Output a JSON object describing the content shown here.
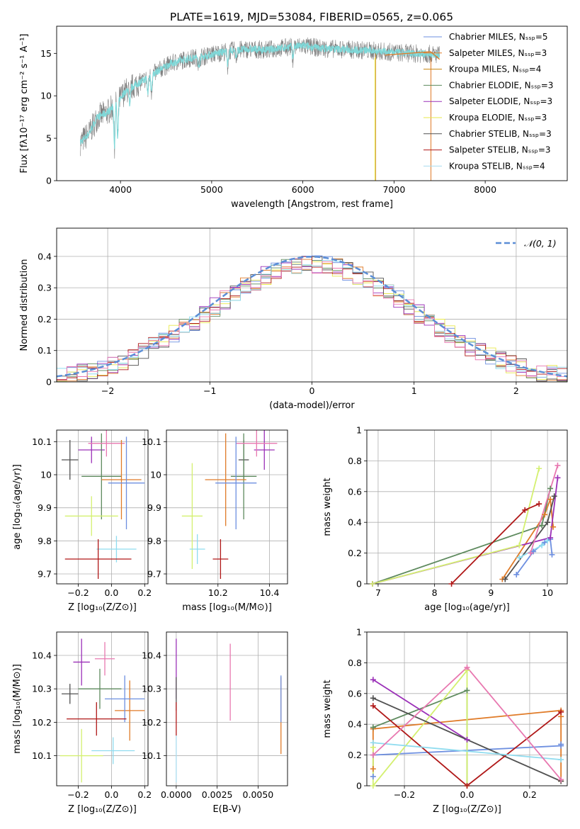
{
  "figure": {
    "title": "PLATE=1619, MJD=53084, FIBERID=0565, z=0.065"
  },
  "model_colors": [
    "#6d8fe0",
    "#e07b28",
    "#c8860e",
    "#5e8a5e",
    "#9b30b8",
    "#e8e84a",
    "#505050",
    "#b01818",
    "#a8dcef"
  ],
  "chart_data": [
    {
      "id": "spectrum",
      "type": "line",
      "xlabel": "wavelength [Angstrom, rest frame]",
      "ylabel": "Flux [fλ10⁻¹⁷ erg cm⁻² s⁻¹ A⁻¹]",
      "xlim": [
        3300,
        8900
      ],
      "ylim": [
        0,
        18.2
      ],
      "xticks": [
        4000,
        5000,
        6000,
        7000,
        8000
      ],
      "yticks": [
        0,
        5,
        10,
        15
      ],
      "grid": false,
      "legend_position": "upper right",
      "legend": [
        "Chabrier MILES, Nₛₛₚ=5",
        "Salpeter MILES, Nₛₛₚ=3",
        "Kroupa MILES, Nₛₛₚ=4",
        "Chabrier ELODIE, Nₛₛₚ=3",
        "Salpeter ELODIE, Nₛₛₚ=3",
        "Kroupa ELODIE, Nₛₛₚ=3",
        "Chabrier STELIB, Nₛₛₚ=3",
        "Salpeter STELIB, Nₛₛₚ=3",
        "Kroupa STELIB, Nₛₛₚ=4"
      ],
      "data_color": "#808080",
      "model_color": "#7fd8d8",
      "continuum": {
        "x": [
          3560,
          3650,
          3750,
          3850,
          3950,
          4050,
          4150,
          4250,
          4350,
          4450,
          4550,
          4650,
          4750,
          4900,
          5050,
          5200,
          5400,
          5600,
          5800,
          6000,
          6200,
          6400,
          6600,
          6800,
          7000,
          7200,
          7400,
          7500
        ],
        "y": [
          4.5,
          5.5,
          7.5,
          8.0,
          9.0,
          10.5,
          11.2,
          11.8,
          12.5,
          13.2,
          13.8,
          14.1,
          14.4,
          14.6,
          15.0,
          15.3,
          15.5,
          15.4,
          15.7,
          15.9,
          15.6,
          15.5,
          15.4,
          15.3,
          15.1,
          15.0,
          14.9,
          14.8
        ]
      }
    },
    {
      "id": "residuals",
      "type": "histogram",
      "xlabel": "(data-model)/error",
      "ylabel": "Normed distribution",
      "xlim": [
        -2.5,
        2.5
      ],
      "ylim": [
        0,
        0.49
      ],
      "xticks": [
        -2,
        -1,
        0,
        1,
        2
      ],
      "yticks": [
        0.0,
        0.1,
        0.2,
        0.3,
        0.4
      ],
      "grid": true,
      "legend_position": "upper right",
      "legend": [
        "𝒩(0, 1)"
      ],
      "bin_width": 0.1
    },
    {
      "id": "age_vs_Z",
      "type": "errorbar",
      "xlabel": "Z [log₁₀(Z/Z⊙)]",
      "ylabel": "age  [log₁₀(age/yr)]",
      "xlim": [
        -0.33,
        0.22
      ],
      "ylim": [
        9.67,
        10.135
      ],
      "xticks": [
        -0.2,
        -0.0,
        0.2
      ],
      "xticklabels": [
        "−0.2",
        "0.0",
        "0.2"
      ],
      "yticks": [
        9.7,
        9.8,
        9.9,
        10.0,
        10.1
      ],
      "grid": true,
      "points": [
        {
          "x": -0.25,
          "y": 10.045,
          "xerr": 0.05,
          "yerr": 0.06,
          "color": "#505050"
        },
        {
          "x": -0.12,
          "y": 10.075,
          "xerr": 0.08,
          "yerr": 0.04,
          "color": "#9b30b8"
        },
        {
          "x": -0.06,
          "y": 9.995,
          "xerr": 0.12,
          "yerr": 0.13,
          "color": "#5e8a5e"
        },
        {
          "x": -0.03,
          "y": 10.095,
          "xerr": 0.11,
          "yerr": 0.04,
          "color": "#e878b0"
        },
        {
          "x": -0.12,
          "y": 9.875,
          "xerr": 0.16,
          "yerr": 0.06,
          "color": "#d4f070"
        },
        {
          "x": 0.06,
          "y": 9.985,
          "xerr": 0.12,
          "yerr": 0.12,
          "color": "#e07b28"
        },
        {
          "x": 0.09,
          "y": 9.975,
          "xerr": 0.11,
          "yerr": 0.14,
          "color": "#6d8fe0"
        },
        {
          "x": 0.03,
          "y": 9.775,
          "xerr": 0.12,
          "yerr": 0.04,
          "color": "#8fdcef"
        },
        {
          "x": -0.08,
          "y": 9.745,
          "xerr": 0.2,
          "yerr": 0.06,
          "color": "#b01818"
        }
      ]
    },
    {
      "id": "age_vs_mass",
      "type": "errorbar",
      "xlabel": "mass [log₁₀(M/M⊙)]",
      "ylabel": "",
      "xlim": [
        10.0,
        10.47
      ],
      "ylim": [
        9.67,
        10.135
      ],
      "xticks": [
        10.2,
        10.4
      ],
      "yticks": [
        9.7,
        9.8,
        9.9,
        10.0,
        10.1
      ],
      "grid": true,
      "points": [
        {
          "x": 10.3,
          "y": 10.045,
          "xerr": 0.02,
          "yerr": 0.06,
          "color": "#505050"
        },
        {
          "x": 10.38,
          "y": 10.075,
          "xerr": 0.04,
          "yerr": 0.06,
          "color": "#9b30b8"
        },
        {
          "x": 10.3,
          "y": 9.995,
          "xerr": 0.05,
          "yerr": 0.13,
          "color": "#5e8a5e"
        },
        {
          "x": 10.35,
          "y": 10.095,
          "xerr": 0.08,
          "yerr": 0.04,
          "color": "#e878b0"
        },
        {
          "x": 10.1,
          "y": 9.875,
          "xerr": 0.04,
          "yerr": 0.16,
          "color": "#d4f070"
        },
        {
          "x": 10.23,
          "y": 9.985,
          "xerr": 0.08,
          "yerr": 0.14,
          "color": "#e07b28"
        },
        {
          "x": 10.27,
          "y": 9.975,
          "xerr": 0.08,
          "yerr": 0.14,
          "color": "#6d8fe0"
        },
        {
          "x": 10.12,
          "y": 9.775,
          "xerr": 0.03,
          "yerr": 0.045,
          "color": "#8fdcef"
        },
        {
          "x": 10.21,
          "y": 9.745,
          "xerr": 0.03,
          "yerr": 0.06,
          "color": "#b01818"
        }
      ]
    },
    {
      "id": "weight_vs_age",
      "type": "line",
      "xlabel": "age  [log₁₀(age/yr)]",
      "ylabel": "mass weight",
      "xlim": [
        6.8,
        10.35
      ],
      "ylim": [
        0,
        1.0
      ],
      "xticks": [
        7,
        8,
        9,
        10
      ],
      "yticks": [
        0.0,
        0.2,
        0.4,
        0.6,
        0.8,
        1.0
      ],
      "grid": true,
      "series": [
        {
          "color": "#6d8fe0",
          "x": [
            9.45,
            9.75,
            9.95,
            10.05,
            10.08
          ],
          "y": [
            0.06,
            0.21,
            0.27,
            0.29,
            0.19
          ]
        },
        {
          "color": "#e07b28",
          "x": [
            9.2,
            9.95,
            10.05,
            10.1
          ],
          "y": [
            0.03,
            0.45,
            0.55,
            0.37
          ]
        },
        {
          "color": "#5e8a5e",
          "x": [
            6.9,
            9.9,
            10.05
          ],
          "y": [
            0.0,
            0.38,
            0.62
          ]
        },
        {
          "color": "#9b30b8",
          "x": [
            6.9,
            10.05,
            10.18
          ],
          "y": [
            0.0,
            0.3,
            0.69
          ]
        },
        {
          "color": "#d4f070",
          "x": [
            6.9,
            9.5,
            9.85
          ],
          "y": [
            0.0,
            0.25,
            0.75
          ]
        },
        {
          "color": "#505050",
          "x": [
            9.25,
            10.0,
            10.12
          ],
          "y": [
            0.03,
            0.4,
            0.57
          ]
        },
        {
          "color": "#b01818",
          "x": [
            8.3,
            9.6,
            9.85
          ],
          "y": [
            0.0,
            0.48,
            0.52
          ]
        },
        {
          "color": "#8fdcef",
          "x": [
            9.5,
            9.9,
            10.0
          ],
          "y": [
            0.17,
            0.25,
            0.28
          ]
        },
        {
          "color": "#e878b0",
          "x": [
            9.7,
            10.18
          ],
          "y": [
            0.2,
            0.77
          ]
        }
      ]
    },
    {
      "id": "mass_vs_Z",
      "type": "errorbar",
      "xlabel": "Z [log₁₀(Z/Z⊙)]",
      "ylabel": "mass [log₁₀(M/M⊙)]",
      "xlim": [
        -0.33,
        0.22
      ],
      "ylim": [
        10.01,
        10.47
      ],
      "xticks": [
        -0.2,
        -0.0,
        0.2
      ],
      "xticklabels": [
        "−0.2",
        "0.0",
        "0.2"
      ],
      "yticks": [
        10.1,
        10.2,
        10.3,
        10.4
      ],
      "grid": true,
      "points": [
        {
          "x": -0.25,
          "y": 10.285,
          "xerr": 0.05,
          "yerr": 0.03,
          "color": "#505050"
        },
        {
          "x": -0.18,
          "y": 10.38,
          "xerr": 0.05,
          "yerr": 0.07,
          "color": "#9b30b8"
        },
        {
          "x": -0.07,
          "y": 10.3,
          "xerr": 0.13,
          "yerr": 0.06,
          "color": "#5e8a5e"
        },
        {
          "x": -0.04,
          "y": 10.39,
          "xerr": 0.06,
          "yerr": 0.05,
          "color": "#e878b0"
        },
        {
          "x": -0.18,
          "y": 10.1,
          "xerr": 0.13,
          "yerr": 0.08,
          "color": "#d4f070"
        },
        {
          "x": 0.11,
          "y": 10.235,
          "xerr": 0.09,
          "yerr": 0.09,
          "color": "#e07b28"
        },
        {
          "x": 0.08,
          "y": 10.27,
          "xerr": 0.12,
          "yerr": 0.07,
          "color": "#6d8fe0"
        },
        {
          "x": 0.01,
          "y": 10.115,
          "xerr": 0.13,
          "yerr": 0.04,
          "color": "#8fdcef"
        },
        {
          "x": -0.09,
          "y": 10.21,
          "xerr": 0.18,
          "yerr": 0.05,
          "color": "#b01818"
        }
      ]
    },
    {
      "id": "mass_vs_ebv",
      "type": "errorbar",
      "xlabel": "E(B-V)",
      "ylabel": "",
      "xlim": [
        -0.0006,
        0.0068
      ],
      "ylim": [
        10.01,
        10.47
      ],
      "xticks": [
        0.0,
        0.0025,
        0.005
      ],
      "xticklabels": [
        "0.0000",
        "0.0025",
        "0.0050"
      ],
      "yticks": [
        10.1,
        10.2,
        10.3,
        10.4
      ],
      "grid": true,
      "points": [
        {
          "x": 0.0,
          "y": 10.36,
          "xerr": 0,
          "yerr": 0.09,
          "color": "#9b30b8"
        },
        {
          "x": 0.0,
          "y": 10.285,
          "xerr": 0,
          "yerr": 0.05,
          "color": "#505050"
        },
        {
          "x": 0.0,
          "y": 10.21,
          "xerr": 0,
          "yerr": 0.05,
          "color": "#b01818"
        },
        {
          "x": 0.0,
          "y": 10.09,
          "xerr": 0,
          "yerr": 0.07,
          "color": "#a8dcef"
        },
        {
          "x": 0.0033,
          "y": 10.32,
          "xerr": 0,
          "yerr": 0.115,
          "color": "#e878b0"
        },
        {
          "x": 0.0064,
          "y": 10.22,
          "xerr": 0,
          "yerr": 0.115,
          "color": "#e07b28"
        },
        {
          "x": 0.0064,
          "y": 10.27,
          "xerr": 0,
          "yerr": 0.07,
          "color": "#6d8fe0"
        }
      ]
    },
    {
      "id": "weight_vs_Z",
      "type": "line",
      "xlabel": "Z [log₁₀(Z/Z⊙)]",
      "ylabel": "mass weight",
      "xlim": [
        -0.32,
        0.32
      ],
      "ylim": [
        0,
        1.0
      ],
      "xticks": [
        -0.2,
        0.0,
        0.2
      ],
      "xticklabels": [
        "−0.2",
        "0.0",
        "0.2"
      ],
      "yticks": [
        0.0,
        0.2,
        0.4,
        0.6,
        0.8,
        1.0
      ],
      "grid": true,
      "series": [
        {
          "color": "#6d8fe0",
          "x": [
            -0.3,
            -0.3,
            0.3,
            0.3
          ],
          "y": [
            0.06,
            0.2,
            0.26,
            0.27
          ]
        },
        {
          "color": "#e07b28",
          "x": [
            -0.3,
            -0.3,
            0.3,
            0.3,
            0.3
          ],
          "y": [
            0.11,
            0.37,
            0.49,
            0.03,
            0.45
          ]
        },
        {
          "color": "#5e8a5e",
          "x": [
            -0.3,
            0.0,
            0.0
          ],
          "y": [
            0.38,
            0.62,
            0.0
          ]
        },
        {
          "color": "#9b30b8",
          "x": [
            -0.3,
            0.0
          ],
          "y": [
            0.69,
            0.3
          ]
        },
        {
          "color": "#d4f070",
          "x": [
            -0.3,
            -0.3,
            0.0,
            0.0
          ],
          "y": [
            0.25,
            0.0,
            0.75,
            0.0
          ]
        },
        {
          "color": "#505050",
          "x": [
            -0.3,
            0.3
          ],
          "y": [
            0.57,
            0.03
          ]
        },
        {
          "color": "#b01818",
          "x": [
            -0.3,
            0.0,
            0.3
          ],
          "y": [
            0.52,
            0.0,
            0.48
          ]
        },
        {
          "color": "#8fdcef",
          "x": [
            -0.3,
            0.3
          ],
          "y": [
            0.28,
            0.17
          ]
        },
        {
          "color": "#e878b0",
          "x": [
            -0.3,
            0.0,
            0.3
          ],
          "y": [
            0.2,
            0.77,
            0.04
          ]
        }
      ]
    }
  ]
}
